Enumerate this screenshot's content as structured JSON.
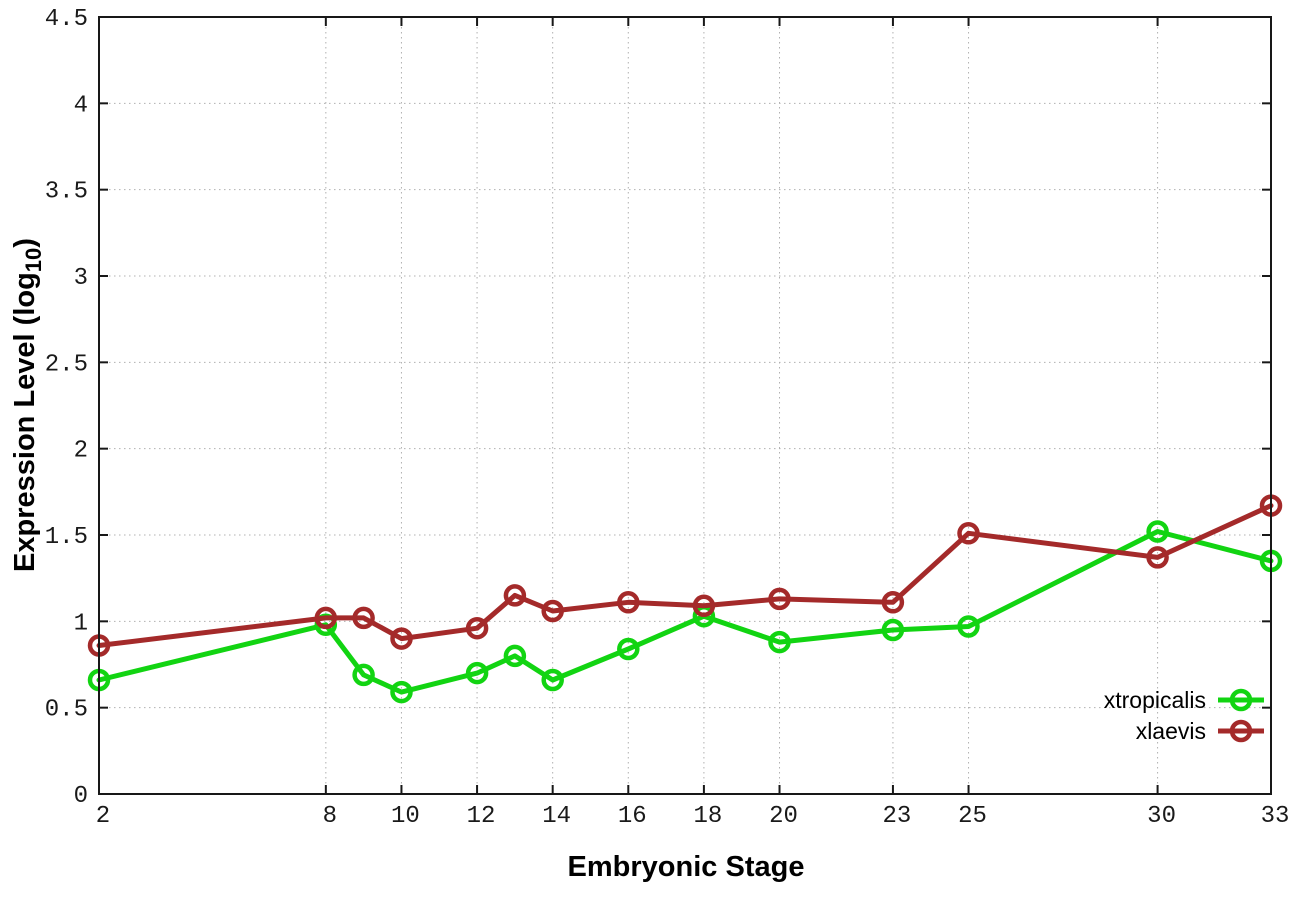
{
  "chart_data": {
    "type": "line",
    "title": "",
    "xlabel": "Embryonic Stage",
    "ylabel": {
      "text": "Expression Level (log",
      "sub": "10",
      "end": ")"
    },
    "xlim": [
      2,
      33
    ],
    "ylim": [
      0,
      4.5
    ],
    "x_ticks": [
      2,
      8,
      10,
      12,
      14,
      16,
      18,
      20,
      23,
      25,
      30,
      33
    ],
    "x_tick_labels": [
      "2",
      "8",
      "10",
      "12",
      "14",
      "16",
      "18",
      "20",
      "23",
      "25",
      "30",
      "33"
    ],
    "y_ticks": [
      0,
      0.5,
      1,
      1.5,
      2,
      2.5,
      3,
      3.5,
      4,
      4.5
    ],
    "y_tick_labels": [
      "0",
      "0.5",
      "1",
      "1.5",
      "2",
      "2.5",
      "3",
      "3.5",
      "4",
      "4.5"
    ],
    "grid": true,
    "grid_style": "dotted",
    "legend_position": "inside bottom right",
    "marker": "open-circle",
    "series": [
      {
        "name": "xtropicalis",
        "color": "#12d412",
        "points": [
          [
            2,
            0.66
          ],
          [
            8,
            0.98
          ],
          [
            9,
            0.69
          ],
          [
            10,
            0.59
          ],
          [
            12,
            0.7
          ],
          [
            13,
            0.8
          ],
          [
            14,
            0.66
          ],
          [
            16,
            0.84
          ],
          [
            18,
            1.03
          ],
          [
            20,
            0.88
          ],
          [
            23,
            0.95
          ],
          [
            25,
            0.97
          ],
          [
            30,
            1.52
          ],
          [
            33,
            1.35
          ]
        ]
      },
      {
        "name": "xlaevis",
        "color": "#a42a2a",
        "points": [
          [
            2,
            0.86
          ],
          [
            8,
            1.02
          ],
          [
            9,
            1.02
          ],
          [
            10,
            0.9
          ],
          [
            12,
            0.96
          ],
          [
            13,
            1.15
          ],
          [
            14,
            1.06
          ],
          [
            16,
            1.11
          ],
          [
            18,
            1.09
          ],
          [
            20,
            1.13
          ],
          [
            23,
            1.11
          ],
          [
            25,
            1.51
          ],
          [
            30,
            1.37
          ],
          [
            33,
            1.67
          ]
        ]
      }
    ],
    "colors": {
      "grid": "#b0b0b0",
      "axis": "#181818",
      "tick_text": "#1a1a1a",
      "label_text": "#000000"
    }
  }
}
